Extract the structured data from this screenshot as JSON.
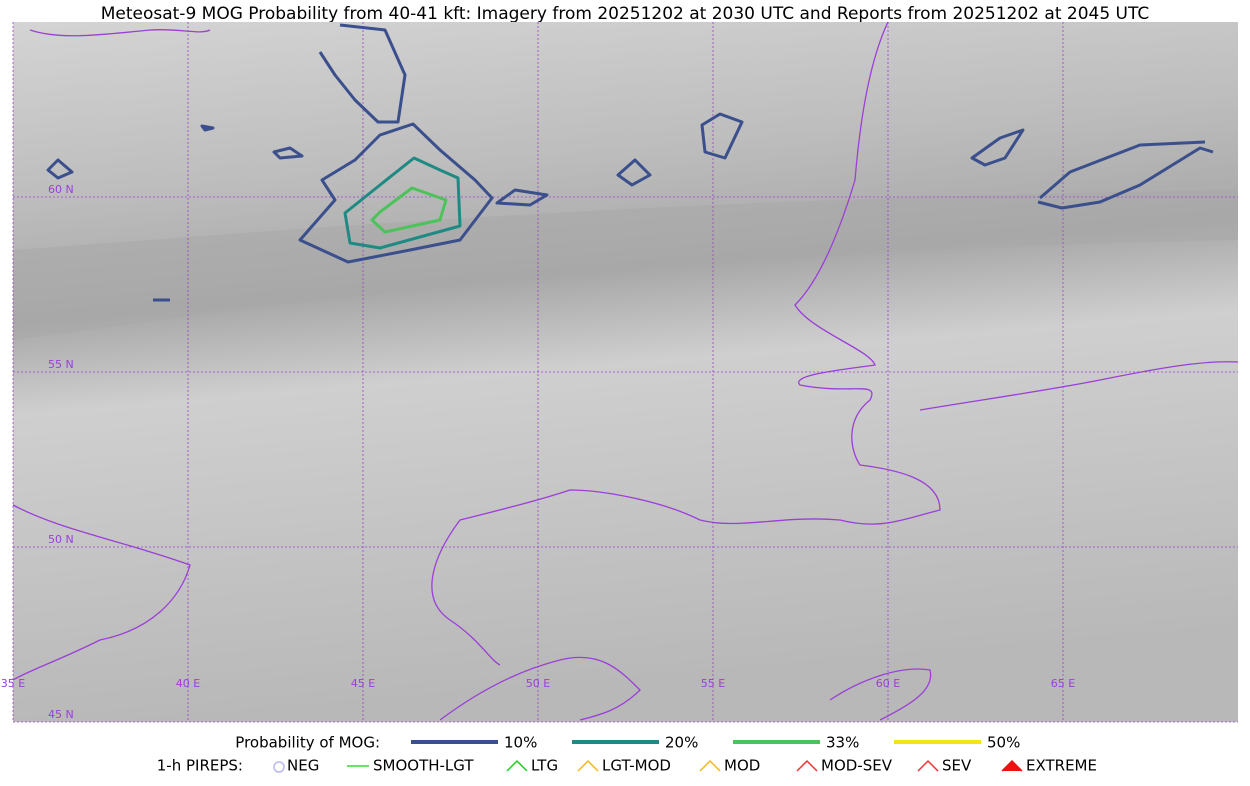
{
  "title": "Meteosat-9 MOG Probability from 40-41 kft: Imagery from 20251202 at 2030 UTC and Reports from 20251202 at 2045 UTC",
  "map": {
    "lat_labels": [
      "60 N",
      "55 N",
      "50 N",
      "45 N"
    ],
    "lon_labels": [
      "35 E",
      "40 E",
      "45 E",
      "50 E",
      "55 E",
      "60 E",
      "65 E"
    ]
  },
  "legend": {
    "probability": {
      "label": "Probability of MOG:",
      "items": [
        {
          "label": "10%",
          "color": "#3b4f8c"
        },
        {
          "label": "20%",
          "color": "#1f8a84"
        },
        {
          "label": "33%",
          "color": "#4cc35a"
        },
        {
          "label": "50%",
          "color": "#f5e21c"
        }
      ]
    },
    "pireps": {
      "label": "1-h PIREPS:",
      "items": [
        {
          "label": "NEG",
          "color": "#b8b8f0"
        },
        {
          "label": "SMOOTH-LGT",
          "color": "#33dd33"
        },
        {
          "label": "LTG",
          "color": "#22cc22"
        },
        {
          "label": "LGT-MOD",
          "color": "#f5b820"
        },
        {
          "label": "MOD",
          "color": "#f5b820"
        },
        {
          "label": "MOD-SEV",
          "color": "#ee3333"
        },
        {
          "label": "SEV",
          "color": "#ee3333"
        },
        {
          "label": "EXTREME",
          "color": "#ee1111"
        }
      ]
    }
  }
}
